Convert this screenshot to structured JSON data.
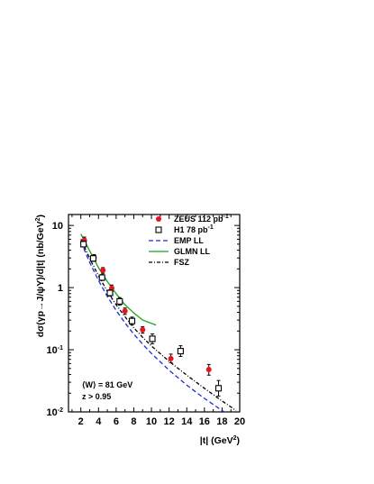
{
  "chart_data": {
    "type": "scatter",
    "xlabel": "|t| (GeV²)",
    "ylabel": "dσ(γp→J/ψY)/d|t| (nb/GeV²)",
    "xlim": [
      0.6,
      20
    ],
    "ylim": [
      0.01,
      15
    ],
    "yscale": "log",
    "grid": false,
    "legend_position": "top-right",
    "x_ticks": [
      2,
      4,
      6,
      8,
      10,
      12,
      14,
      16,
      18,
      20
    ],
    "y_ticks": [
      {
        "value": 10,
        "label": "10"
      },
      {
        "value": 1,
        "label": "1"
      },
      {
        "value": 0.1,
        "label": "10",
        "sup": "-1"
      },
      {
        "value": 0.01,
        "label": "10",
        "sup": "-2"
      }
    ],
    "annotations": [
      "⟨W⟩ = 81 GeV",
      "z > 0.95"
    ],
    "series": [
      {
        "name": "ZEUS 112 pb",
        "name_sup": "-1",
        "kind": "points",
        "marker": "filled-circle",
        "color": "#e8141c",
        "x": [
          2.4,
          3.5,
          4.5,
          5.5,
          7.0,
          9.0,
          12.2,
          16.5
        ],
        "y": [
          5.8,
          3.05,
          1.9,
          0.98,
          0.42,
          0.21,
          0.072,
          0.048
        ],
        "err_low": [
          5.2,
          2.75,
          1.7,
          0.87,
          0.37,
          0.185,
          0.062,
          0.039
        ],
        "err_high": [
          6.5,
          3.4,
          2.1,
          1.1,
          0.47,
          0.235,
          0.085,
          0.058
        ]
      },
      {
        "name": "H1 78 pb",
        "name_sup": "-1",
        "kind": "points",
        "marker": "open-square",
        "color": "#000000",
        "x": [
          2.3,
          3.4,
          4.4,
          5.3,
          6.4,
          7.8,
          10.1,
          13.3,
          17.6
        ],
        "y": [
          5.0,
          2.95,
          1.45,
          0.82,
          0.6,
          0.29,
          0.15,
          0.095,
          0.024
        ],
        "err_low": [
          4.5,
          2.65,
          1.3,
          0.73,
          0.52,
          0.25,
          0.125,
          0.078,
          0.018
        ],
        "err_high": [
          5.6,
          3.3,
          1.62,
          0.92,
          0.69,
          0.335,
          0.18,
          0.116,
          0.032
        ]
      },
      {
        "name": "EMP LL",
        "kind": "line",
        "dash": "dashed",
        "color": "#1c2cd8",
        "x": [
          2.0,
          3.0,
          4.0,
          5.0,
          6.0,
          7.0,
          8.0,
          9.0,
          10.0,
          12.0,
          14.0,
          16.0,
          18.0,
          19.5
        ],
        "y": [
          5.5,
          2.55,
          1.3,
          0.72,
          0.43,
          0.27,
          0.178,
          0.123,
          0.087,
          0.047,
          0.027,
          0.0165,
          0.0105,
          0.0078
        ]
      },
      {
        "name": "GLMN LL",
        "kind": "line",
        "dash": "solid",
        "color": "#1aa31a",
        "x": [
          2.0,
          3.0,
          4.0,
          5.0,
          6.0,
          7.0,
          8.0,
          9.0,
          10.5
        ],
        "y": [
          7.3,
          3.9,
          2.1,
          1.25,
          0.8,
          0.53,
          0.39,
          0.3,
          0.25
        ]
      },
      {
        "name": "FSZ",
        "kind": "line",
        "dash": "dash-dot",
        "color": "#000000",
        "x": [
          2.0,
          3.0,
          4.0,
          5.0,
          6.0,
          7.0,
          8.0,
          9.0,
          10.0,
          12.0,
          14.0,
          16.0,
          18.0,
          19.6
        ],
        "y": [
          6.0,
          2.95,
          1.55,
          0.87,
          0.53,
          0.34,
          0.225,
          0.158,
          0.115,
          0.065,
          0.039,
          0.024,
          0.015,
          0.0105
        ]
      }
    ]
  }
}
